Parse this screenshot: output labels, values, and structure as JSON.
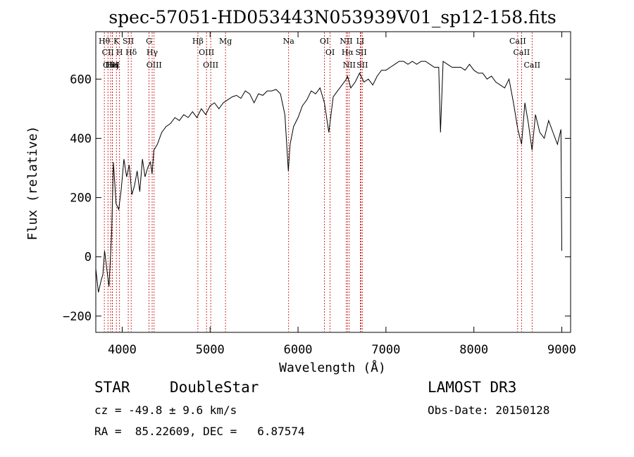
{
  "chart_data": {
    "type": "line",
    "title": "spec-57051-HD053443N053939V01_sp12-158.fits",
    "xlabel": "Wavelength (Å)",
    "ylabel": "Flux (relative)",
    "xlim": [
      3700,
      9100
    ],
    "ylim": [
      -255,
      760
    ],
    "xticks": [
      4000,
      5000,
      6000,
      7000,
      8000,
      9000
    ],
    "yticks": [
      -200,
      0,
      200,
      400,
      600
    ],
    "series": [
      {
        "x": [
          3700,
          3730,
          3760,
          3780,
          3800,
          3820,
          3850,
          3880,
          3900,
          3930,
          3960,
          3990,
          4020,
          4050,
          4080,
          4110,
          4140,
          4170,
          4200,
          4230,
          4260,
          4290,
          4320,
          4340,
          4360,
          4400,
          4450,
          4500,
          4550,
          4600,
          4650,
          4700,
          4750,
          4800,
          4850,
          4900,
          4950,
          5000,
          5050,
          5100,
          5150,
          5200,
          5250,
          5300,
          5350,
          5400,
          5450,
          5500,
          5550,
          5600,
          5650,
          5700,
          5750,
          5800,
          5850,
          5890,
          5910,
          5950,
          6000,
          6050,
          6100,
          6150,
          6200,
          6250,
          6300,
          6350,
          6400,
          6450,
          6500,
          6550,
          6563,
          6600,
          6650,
          6700,
          6750,
          6800,
          6850,
          6900,
          6950,
          7000,
          7050,
          7100,
          7150,
          7200,
          7250,
          7300,
          7350,
          7400,
          7450,
          7500,
          7550,
          7600,
          7620,
          7650,
          7700,
          7750,
          7800,
          7850,
          7900,
          7950,
          8000,
          8050,
          8100,
          8150,
          8200,
          8250,
          8300,
          8350,
          8400,
          8450,
          8500,
          8542,
          8580,
          8620,
          8662,
          8700,
          8750,
          8800,
          8850,
          8900,
          8950,
          8990,
          9000
        ],
        "values": [
          -40,
          -120,
          -80,
          -60,
          20,
          -30,
          -100,
          80,
          320,
          180,
          160,
          230,
          330,
          270,
          310,
          210,
          240,
          290,
          220,
          330,
          270,
          300,
          320,
          280,
          360,
          380,
          420,
          440,
          450,
          470,
          460,
          480,
          470,
          490,
          470,
          500,
          480,
          510,
          520,
          500,
          520,
          530,
          540,
          545,
          535,
          560,
          550,
          520,
          550,
          545,
          560,
          560,
          565,
          550,
          480,
          290,
          380,
          440,
          470,
          510,
          530,
          560,
          550,
          570,
          520,
          420,
          540,
          560,
          580,
          600,
          610,
          570,
          590,
          620,
          590,
          600,
          580,
          610,
          630,
          630,
          640,
          650,
          660,
          660,
          650,
          660,
          650,
          660,
          660,
          650,
          640,
          640,
          420,
          660,
          650,
          640,
          640,
          640,
          630,
          650,
          630,
          620,
          620,
          600,
          610,
          590,
          580,
          570,
          600,
          520,
          430,
          380,
          520,
          450,
          360,
          480,
          420,
          400,
          460,
          420,
          380,
          430,
          20
        ]
      }
    ],
    "lines": [
      {
        "label": "Hθ",
        "wl": 3797
      },
      {
        "label": "CII",
        "wl": 3838
      },
      {
        "label": "OIII",
        "wl": 3868
      },
      {
        "label": "K",
        "wl": 3934
      },
      {
        "label": "HeI",
        "wl": 3889
      },
      {
        "label": "Hη",
        "wl": 3889
      },
      {
        "label": "H",
        "wl": 3970
      },
      {
        "label": "SII",
        "wl": 4069
      },
      {
        "label": "Hδ",
        "wl": 4102
      },
      {
        "label": "OIII",
        "wl": 4363
      },
      {
        "label": "Hγ",
        "wl": 4341
      },
      {
        "label": "G",
        "wl": 4305
      },
      {
        "label": "Hβ",
        "wl": 4861
      },
      {
        "label": "OIII",
        "wl": 4959
      },
      {
        "label": "OIII",
        "wl": 5007
      },
      {
        "label": "Mg",
        "wl": 5175
      },
      {
        "label": "Na",
        "wl": 5893
      },
      {
        "label": "OI",
        "wl": 6300
      },
      {
        "label": "OI",
        "wl": 6364
      },
      {
        "label": "Hα",
        "wl": 6563
      },
      {
        "label": "NII",
        "wl": 6548
      },
      {
        "label": "NII",
        "wl": 6583
      },
      {
        "label": "SII",
        "wl": 6717
      },
      {
        "label": "LI",
        "wl": 6708
      },
      {
        "label": "SII",
        "wl": 6731
      },
      {
        "label": "CaII",
        "wl": 8498
      },
      {
        "label": "CaII",
        "wl": 8542
      },
      {
        "label": "CaII",
        "wl": 8662
      }
    ]
  },
  "info": {
    "obj_class": "STAR",
    "subclass": "DoubleStar",
    "survey": "LAMOST DR3",
    "cz": "cz = -49.8 ± 9.6 km/s",
    "obs_date": "Obs-Date: 20150128",
    "coords": "RA =  85.22609, DEC =   6.87574"
  }
}
